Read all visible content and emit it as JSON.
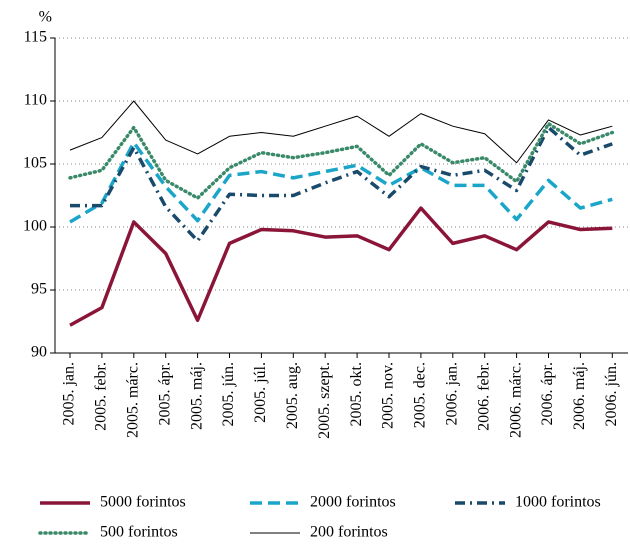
{
  "chart_data": {
    "type": "line",
    "y_label": "%",
    "categories": [
      "2005. jan.",
      "2005. febr.",
      "2005. márc.",
      "2005. ápr.",
      "2005. máj.",
      "2005. jún.",
      "2005. júl.",
      "2005. aug.",
      "2005. szept.",
      "2005. okt.",
      "2005. nov.",
      "2005. dec.",
      "2006. jan.",
      "2006. febr.",
      "2006. márc.",
      "2006. ápr.",
      "2006. máj.",
      "2006. jún."
    ],
    "series": [
      {
        "name": "5000 forintos",
        "color": "#8b1538",
        "line_style": "solid",
        "values": [
          92.2,
          93.6,
          100.4,
          97.9,
          92.6,
          98.7,
          99.8,
          99.7,
          99.2,
          99.3,
          98.2,
          101.5,
          98.7,
          99.3,
          98.2,
          100.4,
          99.8,
          99.9
        ]
      },
      {
        "name": "2000 forintos",
        "color": "#1ba6c9",
        "line_style": "dashed",
        "values": [
          100.4,
          101.9,
          106.7,
          103.2,
          100.5,
          104.1,
          104.4,
          103.9,
          104.4,
          104.9,
          103.3,
          104.7,
          103.3,
          103.3,
          100.6,
          103.7,
          101.5,
          102.2
        ]
      },
      {
        "name": "1000 forintos",
        "color": "#1a4a6b",
        "line_style": "dashdot",
        "values": [
          101.7,
          101.7,
          106.3,
          101.6,
          98.9,
          102.6,
          102.5,
          102.5,
          103.5,
          104.4,
          102.4,
          104.8,
          104.1,
          104.5,
          102.9,
          107.9,
          105.7,
          106.6
        ]
      },
      {
        "name": "500 forintos",
        "color": "#3a8a6a",
        "line_style": "dotted",
        "values": [
          103.9,
          104.5,
          107.9,
          103.7,
          102.3,
          104.7,
          105.9,
          105.5,
          105.9,
          106.4,
          104.1,
          106.6,
          105.1,
          105.5,
          103.6,
          108.2,
          106.6,
          107.5
        ]
      },
      {
        "name": "200 forintos",
        "color": "#000000",
        "line_style": "thin",
        "values": [
          106.1,
          107.1,
          110.0,
          106.9,
          105.8,
          107.2,
          107.5,
          107.2,
          108.0,
          108.8,
          107.2,
          109.0,
          108.0,
          107.4,
          105.1,
          108.5,
          107.3,
          108.0
        ]
      }
    ],
    "ylim": [
      90,
      115
    ],
    "yticks": [
      90,
      95,
      100,
      105,
      110,
      115
    ],
    "grid": true
  }
}
